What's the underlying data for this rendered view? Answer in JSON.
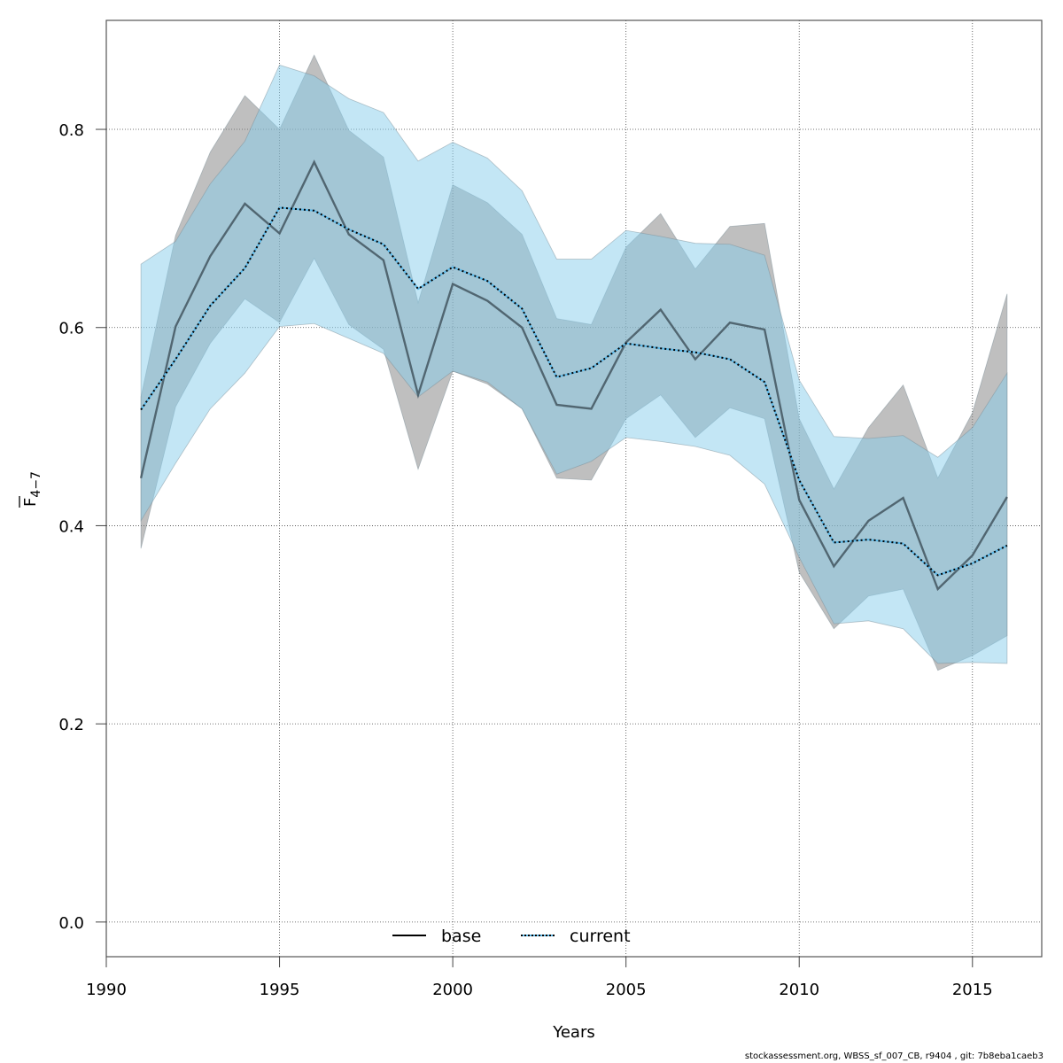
{
  "chart_data": {
    "type": "line",
    "title": "",
    "xlabel": "Years",
    "ylabel": "F̅ 4–7",
    "ylabel_main": "F",
    "ylabel_sub": "4−7",
    "xlim": [
      1990,
      2017
    ],
    "ylim": [
      -0.035,
      0.91
    ],
    "x_ticks": [
      1990,
      1995,
      2000,
      2005,
      2010,
      2015
    ],
    "x_tick_labels": [
      "1990",
      "1995",
      "2000",
      "2005",
      "2010",
      "2015"
    ],
    "y_ticks": [
      0.0,
      0.2,
      0.4,
      0.6,
      0.8
    ],
    "y_tick_labels": [
      "0.0",
      "0.2",
      "0.4",
      "0.6",
      "0.8"
    ],
    "grid": true,
    "legend_position": "bottom-center",
    "x": [
      1991,
      1992,
      1993,
      1994,
      1995,
      1996,
      1997,
      1998,
      1999,
      2000,
      2001,
      2002,
      2003,
      2004,
      2005,
      2006,
      2007,
      2008,
      2009,
      2010,
      2011,
      2012,
      2013,
      2014,
      2015,
      2016
    ],
    "series": [
      {
        "name": "base",
        "line_style": "solid",
        "color": "#000000",
        "band_color": "#808080",
        "values": [
          0.448,
          0.601,
          0.672,
          0.725,
          0.695,
          0.767,
          0.694,
          0.668,
          0.532,
          0.644,
          0.627,
          0.6,
          0.522,
          0.518,
          0.585,
          0.618,
          0.568,
          0.605,
          0.598,
          0.426,
          0.359,
          0.405,
          0.428,
          0.336,
          0.37,
          0.429
        ],
        "upper": [
          0.53,
          0.693,
          0.777,
          0.834,
          0.8,
          0.875,
          0.799,
          0.772,
          0.625,
          0.744,
          0.726,
          0.694,
          0.609,
          0.603,
          0.681,
          0.715,
          0.659,
          0.702,
          0.705,
          0.508,
          0.437,
          0.499,
          0.542,
          0.448,
          0.514,
          0.634
        ],
        "lower": [
          0.377,
          0.52,
          0.584,
          0.629,
          0.605,
          0.67,
          0.603,
          0.578,
          0.457,
          0.556,
          0.543,
          0.518,
          0.448,
          0.446,
          0.508,
          0.532,
          0.489,
          0.519,
          0.508,
          0.353,
          0.296,
          0.329,
          0.336,
          0.254,
          0.269,
          0.289
        ]
      },
      {
        "name": "current",
        "line_style": "dotted",
        "color": "#000000",
        "dot_underlay_color": "#5bb8e8",
        "band_color": "#87ceeb",
        "values": [
          0.517,
          0.568,
          0.622,
          0.66,
          0.721,
          0.718,
          0.699,
          0.684,
          0.639,
          0.661,
          0.647,
          0.619,
          0.55,
          0.559,
          0.584,
          0.579,
          0.575,
          0.568,
          0.545,
          0.446,
          0.383,
          0.386,
          0.382,
          0.35,
          0.362,
          0.38
        ],
        "upper": [
          0.664,
          0.687,
          0.745,
          0.788,
          0.865,
          0.854,
          0.831,
          0.817,
          0.768,
          0.787,
          0.771,
          0.738,
          0.669,
          0.669,
          0.698,
          0.692,
          0.685,
          0.684,
          0.673,
          0.547,
          0.49,
          0.488,
          0.491,
          0.469,
          0.499,
          0.554
        ],
        "lower": [
          0.405,
          0.463,
          0.518,
          0.554,
          0.601,
          0.604,
          0.589,
          0.574,
          0.53,
          0.556,
          0.545,
          0.518,
          0.452,
          0.465,
          0.489,
          0.485,
          0.48,
          0.471,
          0.442,
          0.368,
          0.301,
          0.304,
          0.296,
          0.261,
          0.262,
          0.261
        ]
      }
    ]
  },
  "footer": {
    "text": "stockassessment.org, WBSS_sf_007_CB, r9404 , git: 7b8eba1caeb3"
  }
}
